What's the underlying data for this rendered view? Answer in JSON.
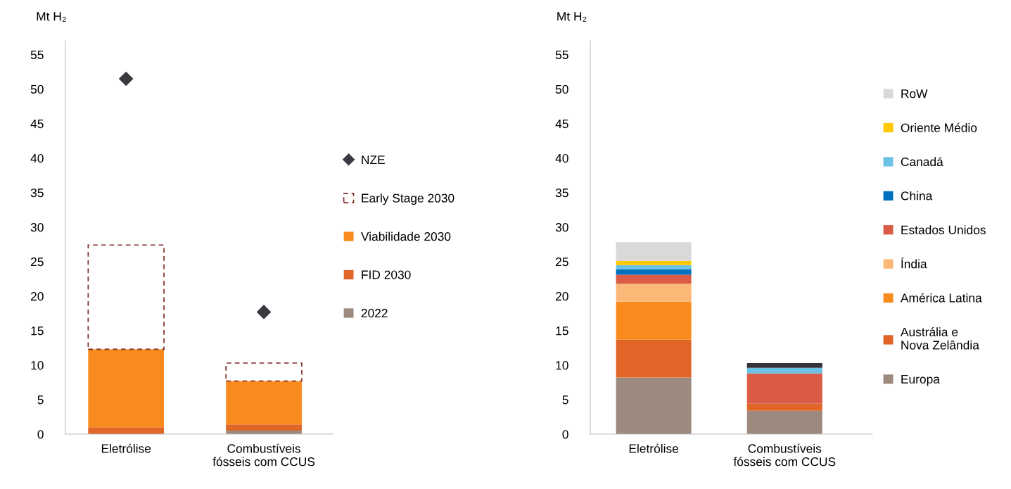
{
  "chart_data": [
    {
      "type": "bar",
      "stacked": true,
      "ylabel": "Mt H₂",
      "categories": [
        "Eletrólise",
        "Combustíveis\nfósseis com CCUS"
      ],
      "ylim": [
        0,
        57
      ],
      "yticks": [
        0,
        5,
        10,
        15,
        20,
        25,
        30,
        35,
        40,
        45,
        50,
        55
      ],
      "grid": false,
      "legend": "right",
      "series": [
        {
          "name": "2022",
          "color": "#9c8a7f",
          "values": [
            0,
            0.5
          ]
        },
        {
          "name": "FID 2030",
          "color": "#e06526",
          "values": [
            1.0,
            0.9
          ]
        },
        {
          "name": "Viabilidade 2030",
          "color": "#f98a1d",
          "values": [
            11.3,
            6.3
          ]
        },
        {
          "name": "Early Stage 2030",
          "color": "#7b2b26",
          "line_style": "dashed",
          "values": [
            15.1,
            2.6
          ]
        },
        {
          "name": "NZE",
          "type": "scatter",
          "marker": "diamond",
          "color": "#3a3940",
          "values": [
            51.5,
            17.7
          ]
        }
      ]
    },
    {
      "type": "bar",
      "stacked": true,
      "ylabel": "Mt H₂",
      "categories": [
        "Eletrólise",
        "Combustíveis\nfósseis com CCUS"
      ],
      "ylim": [
        0,
        57
      ],
      "yticks": [
        0,
        5,
        10,
        15,
        20,
        25,
        30,
        35,
        40,
        45,
        50,
        55
      ],
      "grid": false,
      "legend": "right",
      "series": [
        {
          "name": "Europa",
          "color": "#9c8a7f",
          "values": [
            8.2,
            3.4
          ]
        },
        {
          "name": "Austrália e\nNova Zelândia",
          "color": "#e06526",
          "values": [
            5.5,
            1.0
          ]
        },
        {
          "name": "América Latina",
          "color": "#f98a1d",
          "values": [
            5.5,
            null
          ]
        },
        {
          "name": "Índia",
          "color": "#fbb877",
          "values": [
            2.6,
            null
          ]
        },
        {
          "name": "Estados Unidos",
          "color": "#da5c47",
          "values": [
            1.3,
            4.4
          ]
        },
        {
          "name": "China",
          "color": "#0070c0",
          "values": [
            0.8,
            null
          ]
        },
        {
          "name": "Canadá",
          "color": "#6cc2e4",
          "values": [
            0.6,
            0.8
          ]
        },
        {
          "name": "Oriente Médio",
          "color": "#ffc800",
          "values": [
            0.6,
            null
          ]
        },
        {
          "name": "RoW",
          "color": "#d9d9d9",
          "values": [
            2.7,
            null
          ]
        },
        {
          "color": "#35333a",
          "values": [
            null,
            0.7
          ]
        }
      ]
    }
  ]
}
